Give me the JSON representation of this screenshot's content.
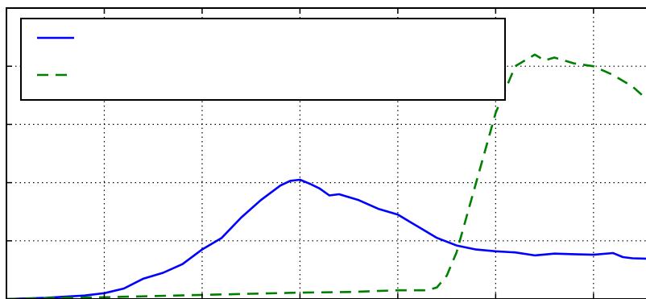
{
  "chart_data": {
    "type": "line",
    "title": "",
    "xlabel": "",
    "ylabel": "",
    "xlim": [
      0,
      6.8
    ],
    "ylim": [
      0,
      5
    ],
    "grid": true,
    "legend_position": "top-left",
    "series": [
      {
        "style": "solid",
        "color": "#0000ff",
        "x": [
          0,
          0.4,
          0.8,
          1.0,
          1.2,
          1.4,
          1.6,
          1.8,
          2.0,
          2.2,
          2.4,
          2.6,
          2.8,
          2.9,
          3.0,
          3.1,
          3.2,
          3.3,
          3.4,
          3.6,
          3.8,
          4.0,
          4.2,
          4.4,
          4.6,
          4.8,
          5.0,
          5.2,
          5.4,
          5.6,
          5.8,
          6.0,
          6.2,
          6.3,
          6.4,
          6.6,
          6.8
        ],
        "y": [
          0.0,
          0.02,
          0.06,
          0.1,
          0.18,
          0.35,
          0.45,
          0.6,
          0.85,
          1.05,
          1.4,
          1.7,
          1.95,
          2.03,
          2.05,
          1.98,
          1.9,
          1.78,
          1.8,
          1.7,
          1.55,
          1.45,
          1.25,
          1.05,
          0.92,
          0.85,
          0.82,
          0.8,
          0.75,
          0.78,
          0.77,
          0.76,
          0.79,
          0.72,
          0.7,
          0.69,
          0.68
        ]
      },
      {
        "style": "dashed",
        "color": "#008000",
        "x": [
          0,
          0.5,
          1.0,
          1.5,
          2.0,
          2.5,
          3.0,
          3.5,
          4.0,
          4.3,
          4.4,
          4.5,
          4.6,
          4.8,
          5.0,
          5.2,
          5.4,
          5.5,
          5.6,
          5.8,
          6.0,
          6.2,
          6.4,
          6.6,
          6.8
        ],
        "y": [
          0.0,
          0.02,
          0.03,
          0.05,
          0.07,
          0.09,
          0.11,
          0.12,
          0.15,
          0.15,
          0.2,
          0.4,
          0.8,
          2.0,
          3.2,
          4.0,
          4.2,
          4.1,
          4.15,
          4.05,
          4.0,
          3.85,
          3.65,
          3.35,
          3.2
        ]
      }
    ]
  }
}
